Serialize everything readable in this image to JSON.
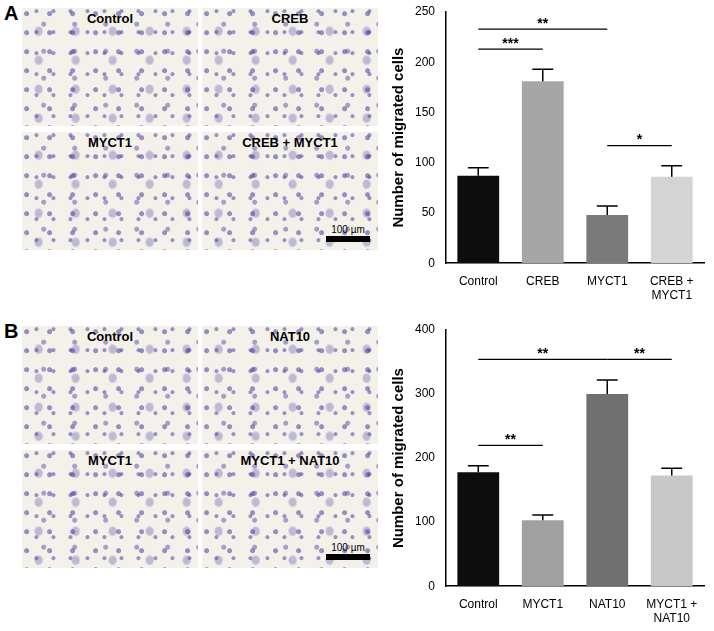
{
  "chart_data": [
    {
      "type": "bar",
      "categories": [
        "Control",
        "CREB",
        "MYCT1",
        "CREB + MYCT1"
      ],
      "values": [
        87,
        181,
        48,
        86
      ],
      "errors": [
        8,
        12,
        9,
        11
      ],
      "colors": [
        "#0d0d0d",
        "#a6a6a6",
        "#7a7a7a",
        "#d4d4d4"
      ],
      "ylabel": "Number of migrated cells",
      "ylim": [
        0,
        250
      ],
      "yticks": [
        0,
        50,
        100,
        150,
        200,
        250
      ],
      "grid": false,
      "annotations": [
        {
          "from": "Control",
          "to": "CREB",
          "text": "***"
        },
        {
          "from": "Control",
          "to": "MYCT1",
          "text": "**"
        },
        {
          "from": "MYCT1",
          "to": "CREB + MYCT1",
          "text": "*"
        }
      ]
    },
    {
      "type": "bar",
      "categories": [
        "Control",
        "MYCT1",
        "NAT10",
        "MYCT1 + NAT10"
      ],
      "values": [
        178,
        103,
        300,
        173
      ],
      "errors": [
        10,
        8,
        22,
        11
      ],
      "colors": [
        "#0d0d0d",
        "#a0a0a0",
        "#707070",
        "#c8c8c8"
      ],
      "ylabel": "Number of migrated cells",
      "ylim": [
        0,
        400
      ],
      "yticks": [
        0,
        100,
        200,
        300,
        400
      ],
      "grid": false,
      "annotations": [
        {
          "from": "Control",
          "to": "MYCT1",
          "text": "**"
        },
        {
          "from": "Control",
          "to": "NAT10",
          "text": "**"
        },
        {
          "from": "NAT10",
          "to": "MYCT1 + NAT10",
          "text": "**"
        }
      ]
    }
  ],
  "figure": {
    "panels": [
      {
        "label": "A",
        "image_titles": [
          "Control",
          "CREB",
          "MYCT1",
          "CREB + MYCT1"
        ],
        "scale_bar": "100 µm"
      },
      {
        "label": "B",
        "image_titles": [
          "Control",
          "NAT10",
          "MYCT1",
          "MYCT1 + NAT10"
        ],
        "scale_bar": "100 µm"
      }
    ]
  }
}
